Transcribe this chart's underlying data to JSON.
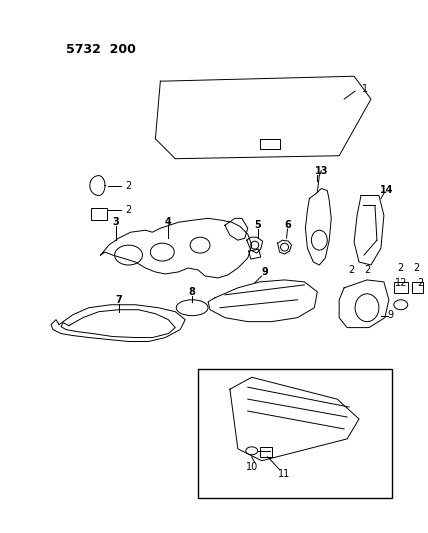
{
  "title": "5732 200",
  "bg_color": "#ffffff",
  "line_color": "#000000",
  "figsize": [
    4.28,
    5.33
  ],
  "dpi": 100
}
